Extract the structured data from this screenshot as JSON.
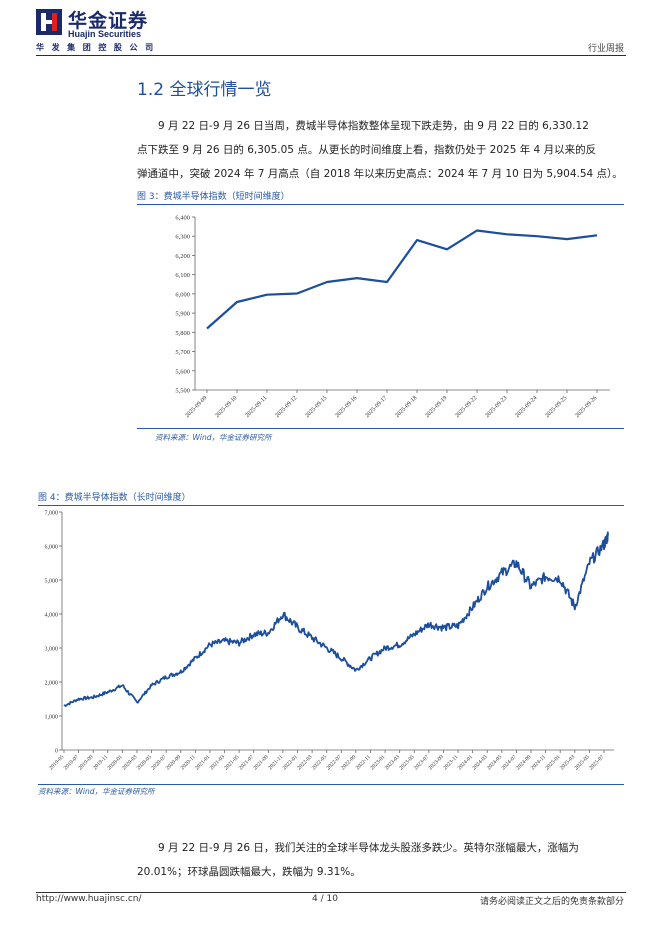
{
  "header": {
    "logo_cn": "华金证券",
    "logo_en": "Huajin Securities",
    "company": "华 发 集 团 控 股 公 司",
    "report_type": "行业周报"
  },
  "section": {
    "title": "1.2 全球行情一览"
  },
  "paragraphs": {
    "p1_line1": "9 月 22 日-9 月 26 日当周，费城半导体指数整体呈现下跌走势，由 9 月 22 日的 6,330.12",
    "p1_line2": "点下跌至 9 月 26 日的 6,305.05 点。从更长的时间维度上看，指数仍处于 2025 年 4 月以来的反",
    "p1_line3": "弹通道中，突破 2024 年 7 月高点（自 2018 年以来历史高点：2024 年 7 月 10 日为 5,904.54 点）。",
    "p2_line1": "9 月 22 日-9 月 26 日，我们关注的全球半导体龙头股涨多跌少。英特尔涨幅最大，涨幅为",
    "p2_line2": "20.01%；环球晶圆跌幅最大，跌幅为 9.31%。"
  },
  "figure3": {
    "title": "图 3：费城半导体指数（短时间维度）",
    "source": "资料来源：Wind，华金证券研究所"
  },
  "figure4": {
    "title": "图 4：费城半导体指数（长时间维度）",
    "source": "资料来源：Wind，华金证券研究所"
  },
  "footer": {
    "url": "http://www.huajinsc.cn/",
    "page": "4 / 10",
    "disclaimer": "请务必阅读正文之后的免责条款部分"
  },
  "colors": {
    "brand": "#1b2a6b",
    "accent": "#2a5aa8",
    "series": "#1b4e9b"
  },
  "chart_data": [
    {
      "type": "line",
      "title": "费城半导体指数（短时间维度）",
      "categories": [
        "2025-09-09",
        "2025-09-10",
        "2025-09-11",
        "2025-09-12",
        "2025-09-15",
        "2025-09-16",
        "2025-09-17",
        "2025-09-18",
        "2025-09-19",
        "2025-09-22",
        "2025-09-23",
        "2025-09-24",
        "2025-09-25",
        "2025-09-26"
      ],
      "values": [
        5820,
        5958,
        5996,
        6002,
        6062,
        6082,
        6062,
        6280,
        6232,
        6330,
        6310,
        6300,
        6285,
        6305
      ],
      "ylim": [
        5500,
        6400
      ],
      "yticks": [
        "5,500",
        "5,600",
        "5,700",
        "5,800",
        "5,900",
        "6,000",
        "6,100",
        "6,200",
        "6,300",
        "6,400"
      ],
      "ytick_values": [
        5500,
        5600,
        5700,
        5800,
        5900,
        6000,
        6100,
        6200,
        6300,
        6400
      ]
    },
    {
      "type": "line",
      "title": "费城半导体指数（长时间维度）",
      "x_labels": [
        "2019-05",
        "2019-07",
        "2019-09",
        "2019-11",
        "2020-01",
        "2020-03",
        "2020-05",
        "2020-07",
        "2020-09",
        "2020-11",
        "2021-01",
        "2021-03",
        "2021-05",
        "2021-07",
        "2021-09",
        "2021-11",
        "2022-01",
        "2022-03",
        "2022-05",
        "2022-07",
        "2022-09",
        "2022-11",
        "2023-01",
        "2023-03",
        "2023-05",
        "2023-07",
        "2023-09",
        "2023-11",
        "2024-01",
        "2024-03",
        "2024-05",
        "2024-07",
        "2024-09",
        "2024-11",
        "2025-01",
        "2025-03",
        "2025-05",
        "2025-07"
      ],
      "anchor_values": [
        1300,
        1500,
        1550,
        1700,
        1900,
        1400,
        1900,
        2150,
        2300,
        2700,
        3100,
        3200,
        3150,
        3400,
        3450,
        4000,
        3600,
        3300,
        3000,
        2700,
        2350,
        2700,
        3000,
        3100,
        3400,
        3700,
        3600,
        3650,
        4200,
        4800,
        5200,
        5500,
        4800,
        5100,
        5050,
        4200,
        5500,
        6050
      ],
      "start_value": 1300,
      "end_value": 6305,
      "ylim": [
        0,
        7000
      ],
      "yticks": [
        "0",
        "1,000",
        "2,000",
        "3,000",
        "4,000",
        "5,000",
        "6,000",
        "7,000"
      ],
      "ytick_values": [
        0,
        1000,
        2000,
        3000,
        4000,
        5000,
        6000,
        7000
      ]
    }
  ]
}
